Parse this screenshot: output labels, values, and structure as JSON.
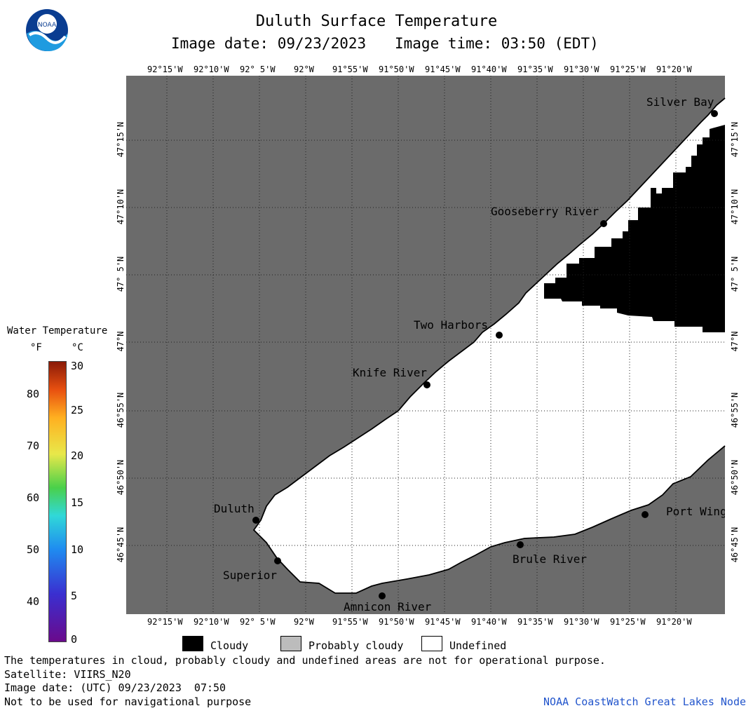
{
  "header": {
    "title": "Duluth Surface Temperature",
    "image_date_label": "Image date: 09/23/2023",
    "image_time_label": "Image time: 03:50 (EDT)"
  },
  "logo": {
    "text": "NOAA"
  },
  "map": {
    "x_ticks": [
      "92°15'W",
      "92°10'W",
      "92° 5'W",
      "92°W",
      "91°55'W",
      "91°50'W",
      "91°45'W",
      "91°40'W",
      "91°35'W",
      "91°30'W",
      "91°25'W",
      "91°20'W"
    ],
    "y_ticks": [
      "47°15'N",
      "47°10'N",
      "47° 5'N",
      "47°N",
      "46°55'N",
      "46°50'N",
      "46°45'N"
    ],
    "places": {
      "silver_bay": "Silver Bay",
      "gooseberry": "Gooseberry River",
      "two_harbors": "Two Harbors",
      "knife_river": "Knife River",
      "duluth": "Duluth",
      "superior": "Superior",
      "amnicon": "Amnicon River",
      "brule": "Brule River",
      "port_wing": "Port Wing"
    },
    "colors": {
      "land": "#6b6b6b",
      "cloud": "#000000",
      "undefined": "#ffffff",
      "grid": "#222222"
    }
  },
  "colorbar": {
    "title": "Water Temperature",
    "unit_f": "°F",
    "unit_c": "°C",
    "f_ticks": [
      "80",
      "70",
      "60",
      "50",
      "40"
    ],
    "c_ticks": [
      "30",
      "25",
      "20",
      "15",
      "10",
      "5",
      "0"
    ]
  },
  "legend": {
    "cloudy": "Cloudy",
    "probably_cloudy": "Probably cloudy",
    "undefined": "Undefined",
    "colors": {
      "cloudy": "#000000",
      "probably_cloudy": "#bcbcbc",
      "undefined": "#ffffff"
    }
  },
  "footer": {
    "disclaimer": "The temperatures in cloud, probably cloudy and undefined areas are not for operational purpose.",
    "satellite": "Satellite: VIIRS_N20",
    "utc_date": "Image date: (UTC) 09/23/2023  07:50",
    "nav_note": "Not to be used for navigational purpose",
    "credit": "NOAA CoastWatch Great Lakes Node"
  }
}
